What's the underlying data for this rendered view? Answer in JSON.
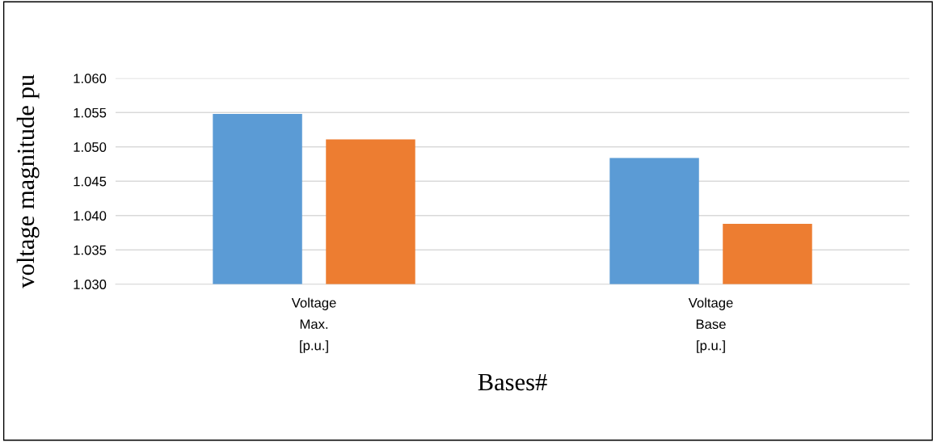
{
  "chart_data": {
    "type": "bar",
    "xlabel": "Bases#",
    "ylabel": "voltage magnitude pu",
    "categories": [
      "Voltage\nMax.\n[p.u.]",
      "Voltage\nBase\n[p.u.]"
    ],
    "series": [
      {
        "color": "#5b9bd5",
        "values": [
          1.0548,
          1.0484
        ]
      },
      {
        "color": "#ed7d31",
        "values": [
          1.0511,
          1.0388
        ]
      }
    ],
    "ylim": [
      1.03,
      1.06
    ],
    "yticks": [
      {
        "value": 1.03,
        "label": "1.030"
      },
      {
        "value": 1.035,
        "label": "1.035"
      },
      {
        "value": 1.04,
        "label": "1.040"
      },
      {
        "value": 1.045,
        "label": "1.045"
      },
      {
        "value": 1.05,
        "label": "1.050"
      },
      {
        "value": 1.055,
        "label": "1.055"
      },
      {
        "value": 1.06,
        "label": "1.060"
      }
    ],
    "grid": "y"
  }
}
